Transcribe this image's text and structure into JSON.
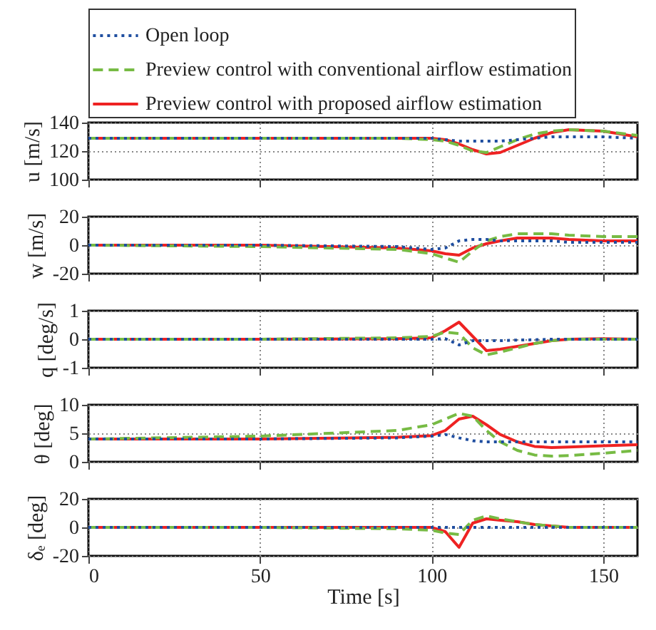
{
  "chart_data": [
    {
      "type": "line",
      "ylabel": "u [m/s]",
      "x": [
        0,
        50,
        90,
        100,
        104,
        108,
        112,
        116,
        120,
        125,
        130,
        135,
        140,
        150,
        160
      ],
      "xlim": [
        0,
        160
      ],
      "xticks": [
        0,
        50,
        100,
        150
      ],
      "ylim": [
        100,
        140
      ],
      "yticks": [
        100,
        120,
        140
      ],
      "grid": true,
      "legend": "top",
      "tick_labels": "y",
      "series": [
        {
          "name": "Open loop",
          "color": "#1f4ea0",
          "line_style": "dotted",
          "values": [
            129,
            129,
            129,
            129,
            128,
            127,
            127,
            127,
            127,
            128,
            129,
            130,
            130,
            130,
            129
          ]
        },
        {
          "name": "Preview control with conventional airflow estimation",
          "color": "#77bb44",
          "line_style": "dashed",
          "values": [
            129,
            129,
            129,
            128,
            127,
            124,
            120,
            119,
            123,
            128,
            132,
            134,
            135,
            134,
            131
          ]
        },
        {
          "name": "Preview control with proposed airflow estimation",
          "color": "#ee2222",
          "line_style": "solid",
          "values": [
            129,
            129,
            129,
            129,
            128,
            125,
            121,
            118,
            119,
            124,
            129,
            133,
            135,
            134,
            130
          ]
        }
      ]
    },
    {
      "type": "line",
      "ylabel": "w [m/s]",
      "x": [
        0,
        50,
        90,
        100,
        104,
        108,
        112,
        116,
        120,
        125,
        130,
        135,
        140,
        150,
        160
      ],
      "xlim": [
        0,
        160
      ],
      "xticks": [
        0,
        50,
        100,
        150
      ],
      "ylim": [
        -20,
        20
      ],
      "yticks": [
        -20,
        0,
        20
      ],
      "grid": true,
      "tick_labels": "y",
      "series": [
        {
          "color": "#1f4ea0",
          "line_style": "dotted",
          "values": [
            0,
            0,
            -1,
            -3,
            -2,
            3,
            4,
            4,
            3,
            3,
            3,
            3,
            2,
            2,
            2
          ]
        },
        {
          "color": "#77bb44",
          "line_style": "dashed",
          "values": [
            0,
            -1,
            -3,
            -6,
            -9,
            -12,
            -4,
            3,
            6,
            8,
            8,
            8,
            7,
            6,
            6
          ]
        },
        {
          "color": "#ee2222",
          "line_style": "solid",
          "values": [
            0,
            0,
            -2,
            -4,
            -6,
            -7,
            -2,
            1,
            3,
            5,
            5,
            5,
            4,
            3,
            3
          ]
        }
      ]
    },
    {
      "type": "line",
      "ylabel": "q [deg/s]",
      "x": [
        0,
        50,
        90,
        100,
        104,
        108,
        112,
        116,
        120,
        125,
        130,
        135,
        140,
        150,
        160
      ],
      "xlim": [
        0,
        160
      ],
      "xticks": [
        0,
        50,
        100,
        150
      ],
      "ylim": [
        -1,
        1
      ],
      "yticks": [
        -1,
        0,
        1
      ],
      "grid": true,
      "tick_labels": "y",
      "series": [
        {
          "color": "#1f4ea0",
          "line_style": "dotted",
          "values": [
            0,
            0,
            0,
            0,
            0.02,
            -0.2,
            -0.05,
            -0.05,
            -0.05,
            -0.03,
            -0.02,
            0,
            0,
            0,
            0
          ]
        },
        {
          "color": "#77bb44",
          "line_style": "dashed",
          "values": [
            0,
            0,
            0.05,
            0.1,
            0.25,
            0.2,
            -0.3,
            -0.55,
            -0.45,
            -0.3,
            -0.15,
            -0.05,
            0,
            0,
            0
          ]
        },
        {
          "color": "#ee2222",
          "line_style": "solid",
          "values": [
            0,
            0,
            0.02,
            0.05,
            0.3,
            0.6,
            0.1,
            -0.4,
            -0.35,
            -0.25,
            -0.15,
            -0.05,
            0,
            0.02,
            0
          ]
        }
      ]
    },
    {
      "type": "line",
      "ylabel": "θ [deg]",
      "x": [
        0,
        50,
        90,
        100,
        104,
        108,
        112,
        116,
        120,
        125,
        130,
        135,
        140,
        150,
        160
      ],
      "xlim": [
        0,
        160
      ],
      "xticks": [
        0,
        50,
        100,
        150
      ],
      "ylim": [
        0,
        10
      ],
      "yticks": [
        0,
        5,
        10
      ],
      "grid": true,
      "tick_labels": "y",
      "series": [
        {
          "color": "#1f4ea0",
          "line_style": "dotted",
          "values": [
            4,
            4,
            4.2,
            4.5,
            4.8,
            4.2,
            3.7,
            3.5,
            3.5,
            3.5,
            3.5,
            3.5,
            3.5,
            3.5,
            3.5
          ]
        },
        {
          "color": "#77bb44",
          "line_style": "dashed",
          "values": [
            4,
            4.5,
            5.5,
            6.5,
            7.5,
            8.5,
            8,
            5.5,
            3.5,
            2,
            1.2,
            1,
            1.1,
            1.5,
            2
          ]
        },
        {
          "color": "#ee2222",
          "line_style": "solid",
          "values": [
            4,
            4,
            4.3,
            4.6,
            5.5,
            7.5,
            8,
            6.5,
            4.8,
            3.5,
            2.7,
            2.5,
            2.6,
            2.8,
            3
          ]
        }
      ]
    },
    {
      "type": "line",
      "ylabel": "δₑ [deg]",
      "xlabel": "Time [s]",
      "x": [
        0,
        50,
        90,
        100,
        104,
        108,
        112,
        116,
        120,
        125,
        130,
        135,
        140,
        150,
        160
      ],
      "xlim": [
        0,
        160
      ],
      "xticks": [
        0,
        50,
        100,
        150
      ],
      "ylim": [
        -20,
        20
      ],
      "yticks": [
        -20,
        0,
        20
      ],
      "grid": true,
      "series": [
        {
          "color": "#1f4ea0",
          "line_style": "dotted",
          "values": [
            0,
            0,
            0,
            0,
            0,
            0,
            0,
            0,
            0,
            0,
            0,
            0,
            0,
            0,
            0
          ]
        },
        {
          "color": "#77bb44",
          "line_style": "dashed",
          "values": [
            0,
            0,
            -1,
            -2,
            -4,
            -5,
            5,
            8,
            6,
            4,
            2,
            1,
            0,
            0,
            0
          ]
        },
        {
          "color": "#ee2222",
          "line_style": "solid",
          "values": [
            0,
            0,
            0,
            0,
            -3,
            -14,
            3,
            6,
            5,
            4,
            2,
            1,
            0,
            0,
            0
          ]
        }
      ]
    }
  ]
}
